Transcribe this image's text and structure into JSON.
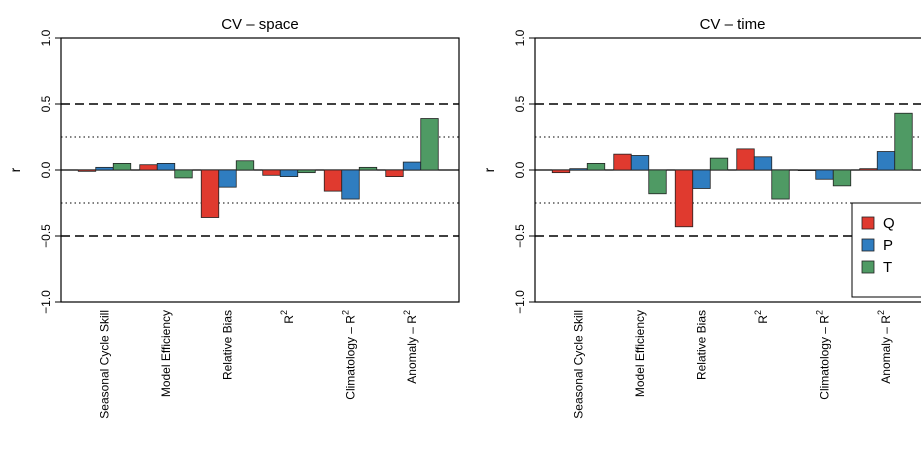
{
  "chart_data": [
    {
      "type": "bar",
      "title": "CV – space",
      "ylabel": "r",
      "ylim": [
        -1.0,
        1.0
      ],
      "yticks": [
        "−1.0",
        "−0.5",
        "0.0",
        "0.5",
        "1.0"
      ],
      "ytick_values": [
        -1.0,
        -0.5,
        0.0,
        0.5,
        1.0
      ],
      "reference_lines": {
        "dashed": [
          0.5,
          -0.5
        ],
        "dotted": [
          0.25,
          -0.25
        ]
      },
      "categories": [
        "Seasonal Cycle Skill",
        "Model Efficiency",
        "Relative Bias",
        "R",
        "Climatology – R",
        "Anomaly – R"
      ],
      "category_superscripts": [
        "",
        "",
        "",
        "2",
        "2",
        "2"
      ],
      "series": [
        {
          "name": "Q",
          "color": "#e03a2f",
          "values": [
            -0.01,
            0.04,
            -0.36,
            -0.04,
            -0.16,
            -0.05
          ]
        },
        {
          "name": "P",
          "color": "#2f7dc0",
          "values": [
            0.02,
            0.05,
            -0.13,
            -0.05,
            -0.22,
            0.06
          ]
        },
        {
          "name": "T",
          "color": "#4f9a64",
          "values": [
            0.05,
            -0.06,
            0.07,
            -0.02,
            0.02,
            0.39
          ]
        }
      ]
    },
    {
      "type": "bar",
      "title": "CV – time",
      "ylabel": "r",
      "ylim": [
        -1.0,
        1.0
      ],
      "yticks": [
        "−1.0",
        "−0.5",
        "0.0",
        "0.5",
        "1.0"
      ],
      "ytick_values": [
        -1.0,
        -0.5,
        0.0,
        0.5,
        1.0
      ],
      "reference_lines": {
        "dashed": [
          0.5,
          -0.5
        ],
        "dotted": [
          0.25,
          -0.25
        ]
      },
      "categories": [
        "Seasonal Cycle Skill",
        "Model Efficiency",
        "Relative Bias",
        "R",
        "Climatology – R",
        "Anomaly – R"
      ],
      "category_superscripts": [
        "",
        "",
        "",
        "2",
        "2",
        "2"
      ],
      "series": [
        {
          "name": "Q",
          "color": "#e03a2f",
          "values": [
            -0.02,
            0.12,
            -0.43,
            0.16,
            0.0,
            0.01
          ]
        },
        {
          "name": "P",
          "color": "#2f7dc0",
          "values": [
            0.01,
            0.11,
            -0.14,
            0.1,
            -0.07,
            0.14
          ]
        },
        {
          "name": "T",
          "color": "#4f9a64",
          "values": [
            0.05,
            -0.18,
            0.09,
            -0.22,
            -0.12,
            0.43
          ]
        }
      ],
      "legend": {
        "position": "right",
        "entries": [
          "Q",
          "P",
          "T"
        ]
      }
    }
  ]
}
